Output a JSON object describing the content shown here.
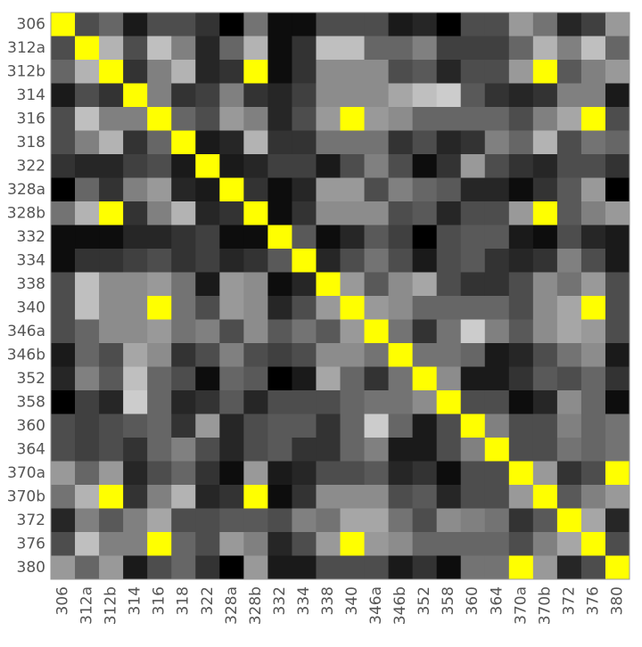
{
  "chart_data": {
    "type": "heatmap",
    "labels": [
      "306",
      "312a",
      "312b",
      "314",
      "316",
      "318",
      "322",
      "328a",
      "328b",
      "332",
      "334",
      "338",
      "340",
      "346a",
      "346b",
      "352",
      "358",
      "360",
      "364",
      "370a",
      "370b",
      "372",
      "376",
      "380"
    ],
    "values": [
      [
        1,
        0.3,
        0.4,
        0.1,
        0.3,
        0.3,
        0.2,
        0,
        0.45,
        0.05,
        0.05,
        0.3,
        0.3,
        0.3,
        0.1,
        0.15,
        0,
        0.3,
        0.3,
        0.6,
        0.45,
        0.15,
        0.25,
        0.6
      ],
      [
        0.3,
        1,
        0.7,
        0.3,
        0.75,
        0.5,
        0.15,
        0.4,
        0.7,
        0.05,
        0.2,
        0.75,
        0.75,
        0.4,
        0.4,
        0.5,
        0.25,
        0.25,
        0.25,
        0.4,
        0.7,
        0.5,
        0.75,
        0.4
      ],
      [
        0.4,
        0.7,
        1,
        0.2,
        0.5,
        0.7,
        0.15,
        0.2,
        1,
        0.05,
        0.2,
        0.55,
        0.55,
        0.55,
        0.3,
        0.35,
        0.15,
        0.3,
        0.3,
        0.6,
        1,
        0.35,
        0.5,
        0.6
      ],
      [
        0.1,
        0.3,
        0.2,
        1,
        0.5,
        0.2,
        0.25,
        0.5,
        0.2,
        0.15,
        0.25,
        0.55,
        0.55,
        0.55,
        0.65,
        0.75,
        0.8,
        0.35,
        0.2,
        0.15,
        0.2,
        0.5,
        0.5,
        0.1
      ],
      [
        0.3,
        0.75,
        0.5,
        0.5,
        1,
        0.4,
        0.3,
        0.6,
        0.5,
        0.15,
        0.3,
        0.6,
        1,
        0.6,
        0.55,
        0.4,
        0.4,
        0.4,
        0.4,
        0.3,
        0.5,
        0.65,
        1,
        0.3
      ],
      [
        0.3,
        0.5,
        0.7,
        0.2,
        0.4,
        1,
        0.1,
        0.15,
        0.7,
        0.2,
        0.2,
        0.45,
        0.45,
        0.45,
        0.2,
        0.3,
        0.15,
        0.2,
        0.5,
        0.4,
        0.7,
        0.3,
        0.45,
        0.4
      ],
      [
        0.2,
        0.15,
        0.15,
        0.25,
        0.3,
        0.1,
        1,
        0.1,
        0.15,
        0.25,
        0.25,
        0.1,
        0.3,
        0.5,
        0.3,
        0.05,
        0.2,
        0.6,
        0.3,
        0.2,
        0.15,
        0.3,
        0.3,
        0.2
      ],
      [
        0,
        0.4,
        0.2,
        0.5,
        0.6,
        0.15,
        0.1,
        1,
        0.2,
        0.05,
        0.15,
        0.6,
        0.6,
        0.3,
        0.5,
        0.4,
        0.35,
        0.15,
        0.15,
        0.05,
        0.2,
        0.35,
        0.6,
        0
      ],
      [
        0.45,
        0.7,
        1,
        0.2,
        0.5,
        0.7,
        0.15,
        0.2,
        1,
        0.05,
        0.2,
        0.55,
        0.55,
        0.55,
        0.3,
        0.35,
        0.15,
        0.3,
        0.3,
        0.6,
        1,
        0.35,
        0.5,
        0.6
      ],
      [
        0.05,
        0.05,
        0.05,
        0.15,
        0.15,
        0.2,
        0.25,
        0.05,
        0.05,
        1,
        0.35,
        0.05,
        0.15,
        0.35,
        0.25,
        0,
        0.3,
        0.35,
        0.35,
        0.1,
        0.05,
        0.3,
        0.15,
        0.1
      ],
      [
        0.05,
        0.2,
        0.2,
        0.25,
        0.3,
        0.2,
        0.25,
        0.15,
        0.2,
        0.35,
        1,
        0.15,
        0.3,
        0.45,
        0.3,
        0.1,
        0.3,
        0.35,
        0.2,
        0.15,
        0.2,
        0.5,
        0.3,
        0.1
      ],
      [
        0.3,
        0.75,
        0.55,
        0.55,
        0.6,
        0.45,
        0.1,
        0.6,
        0.55,
        0.05,
        0.15,
        1,
        0.6,
        0.35,
        0.55,
        0.65,
        0.3,
        0.2,
        0.2,
        0.3,
        0.55,
        0.45,
        0.6,
        0.3
      ],
      [
        0.3,
        0.75,
        0.55,
        0.55,
        1,
        0.45,
        0.3,
        0.6,
        0.55,
        0.15,
        0.3,
        0.6,
        1,
        0.6,
        0.55,
        0.4,
        0.4,
        0.4,
        0.4,
        0.3,
        0.55,
        0.65,
        1,
        0.3
      ],
      [
        0.3,
        0.4,
        0.55,
        0.55,
        0.6,
        0.45,
        0.5,
        0.3,
        0.55,
        0.35,
        0.45,
        0.35,
        0.6,
        1,
        0.45,
        0.2,
        0.45,
        0.8,
        0.5,
        0.35,
        0.55,
        0.65,
        0.6,
        0.3
      ],
      [
        0.1,
        0.4,
        0.3,
        0.65,
        0.55,
        0.2,
        0.3,
        0.5,
        0.3,
        0.25,
        0.3,
        0.55,
        0.55,
        0.45,
        1,
        0.45,
        0.45,
        0.4,
        0.1,
        0.15,
        0.3,
        0.45,
        0.55,
        0.1
      ],
      [
        0.15,
        0.5,
        0.35,
        0.75,
        0.4,
        0.3,
        0.05,
        0.4,
        0.35,
        0,
        0.1,
        0.65,
        0.4,
        0.2,
        0.45,
        1,
        0.55,
        0.1,
        0.1,
        0.2,
        0.35,
        0.3,
        0.4,
        0.2
      ],
      [
        0,
        0.25,
        0.15,
        0.8,
        0.4,
        0.15,
        0.2,
        0.35,
        0.15,
        0.3,
        0.3,
        0.3,
        0.4,
        0.45,
        0.45,
        0.55,
        1,
        0.3,
        0.3,
        0.05,
        0.15,
        0.55,
        0.4,
        0.05
      ],
      [
        0.3,
        0.25,
        0.3,
        0.35,
        0.4,
        0.2,
        0.6,
        0.15,
        0.3,
        0.35,
        0.35,
        0.2,
        0.4,
        0.8,
        0.4,
        0.1,
        0.3,
        1,
        0.5,
        0.3,
        0.3,
        0.5,
        0.4,
        0.45
      ],
      [
        0.3,
        0.25,
        0.3,
        0.2,
        0.4,
        0.5,
        0.3,
        0.15,
        0.3,
        0.35,
        0.2,
        0.2,
        0.4,
        0.5,
        0.1,
        0.1,
        0.3,
        0.5,
        1,
        0.3,
        0.3,
        0.45,
        0.4,
        0.45
      ],
      [
        0.6,
        0.4,
        0.6,
        0.15,
        0.3,
        0.4,
        0.2,
        0.05,
        0.6,
        0.1,
        0.15,
        0.3,
        0.3,
        0.35,
        0.15,
        0.2,
        0.05,
        0.3,
        0.3,
        1,
        0.6,
        0.2,
        0.3,
        1
      ],
      [
        0.45,
        0.7,
        1,
        0.2,
        0.5,
        0.7,
        0.15,
        0.2,
        1,
        0.05,
        0.2,
        0.55,
        0.55,
        0.55,
        0.3,
        0.35,
        0.15,
        0.3,
        0.3,
        0.6,
        1,
        0.35,
        0.5,
        0.6
      ],
      [
        0.15,
        0.5,
        0.35,
        0.5,
        0.65,
        0.3,
        0.3,
        0.35,
        0.35,
        0.3,
        0.5,
        0.45,
        0.65,
        0.65,
        0.45,
        0.3,
        0.55,
        0.5,
        0.45,
        0.2,
        0.35,
        1,
        0.65,
        0.15
      ],
      [
        0.3,
        0.75,
        0.5,
        0.5,
        1,
        0.4,
        0.3,
        0.6,
        0.5,
        0.15,
        0.3,
        0.6,
        1,
        0.6,
        0.55,
        0.4,
        0.4,
        0.4,
        0.4,
        0.3,
        0.5,
        0.65,
        1,
        0.3
      ],
      [
        0.6,
        0.4,
        0.6,
        0.1,
        0.3,
        0.4,
        0.2,
        0,
        0.6,
        0.1,
        0.1,
        0.3,
        0.3,
        0.3,
        0.1,
        0.2,
        0.05,
        0.45,
        0.45,
        1,
        0.6,
        0.15,
        0.3,
        1
      ]
    ],
    "low_color": "#000000",
    "high_color": "#ffffff",
    "match_color": "#ffff00"
  }
}
